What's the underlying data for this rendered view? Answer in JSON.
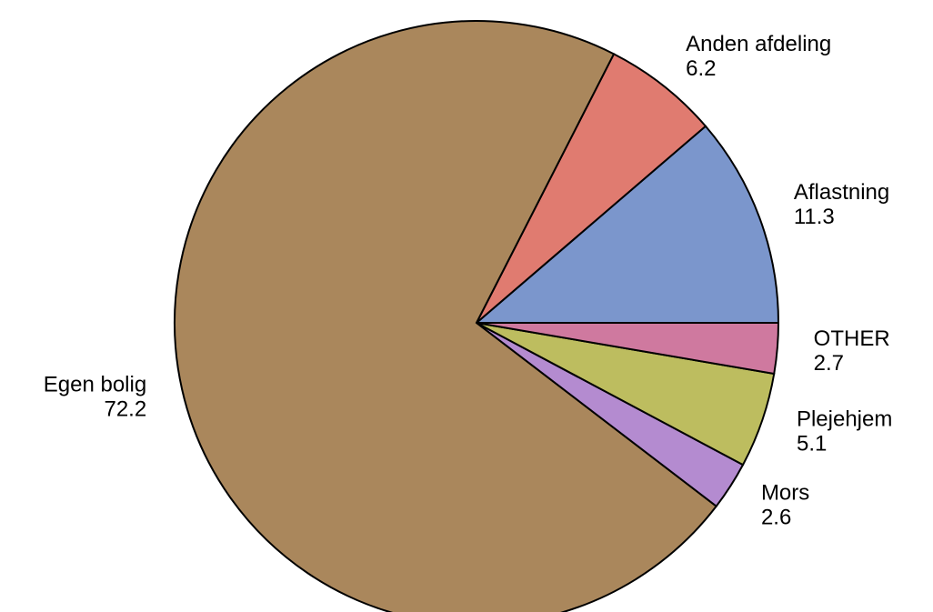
{
  "chart_data": {
    "type": "pie",
    "categories": [
      "Aflastning",
      "Anden afdeling",
      "Egen bolig",
      "Mors",
      "Plejehjem",
      "OTHER"
    ],
    "values": [
      11.3,
      6.2,
      72.2,
      2.6,
      5.1,
      2.7
    ],
    "colors": [
      "#7b96cc",
      "#e07b70",
      "#aa875c",
      "#b48bd0",
      "#bdbd5f",
      "#cf799f"
    ]
  }
}
